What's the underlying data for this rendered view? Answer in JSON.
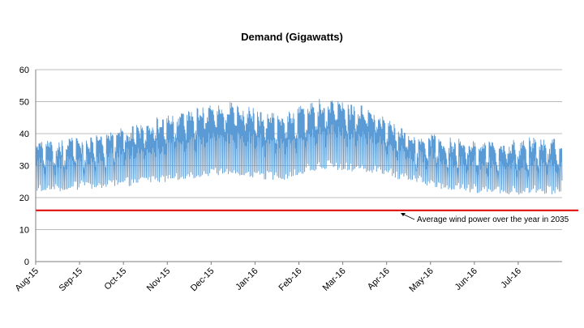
{
  "chart_data": {
    "type": "line",
    "title": "Demand (Gigawatts)",
    "xlabel": "",
    "ylabel": "",
    "ylim": [
      0,
      60
    ],
    "yticks": [
      0,
      10,
      20,
      30,
      40,
      50,
      60
    ],
    "categories": [
      "Aug-15",
      "Sep-15",
      "Oct-15",
      "Nov-15",
      "Dec-15",
      "Jan-16",
      "Feb-16",
      "Mar-16",
      "Apr-16",
      "May-16",
      "Jun-16",
      "Jul-16"
    ],
    "grid": true,
    "series": [
      {
        "name": "",
        "color": "#5b9bd5",
        "note_hourly_oscillation": true,
        "monthly_daily_max": [
          38,
          40,
          44,
          48,
          50,
          46,
          51,
          49,
          41,
          39,
          38,
          39
        ],
        "monthly_daily_min": [
          22,
          23,
          24,
          26,
          27,
          25,
          29,
          28,
          25,
          22,
          21,
          21
        ]
      }
    ],
    "reference_line": {
      "value": 16,
      "color": "#e00000",
      "label": "Average wind power over the year in 2035"
    }
  }
}
